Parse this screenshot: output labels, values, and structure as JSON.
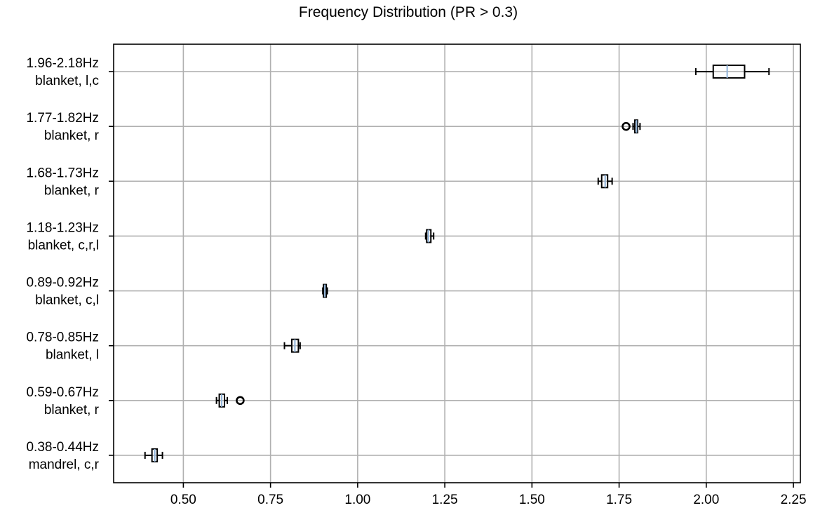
{
  "chart_data": {
    "type": "boxplot",
    "orientation": "horizontal",
    "title": "Frequency Distribution (PR > 0.3)",
    "xlim": [
      0.3,
      2.27
    ],
    "xticks": [
      0.5,
      0.75,
      1.0,
      1.25,
      1.5,
      1.75,
      2.0,
      2.25
    ],
    "xtick_labels": [
      "0.50",
      "0.75",
      "1.00",
      "1.25",
      "1.50",
      "1.75",
      "2.00",
      "2.25"
    ],
    "grid": true,
    "categories": [
      {
        "line1": "1.96-2.18Hz",
        "line2": "blanket, l,c",
        "whisker_low": 1.97,
        "q1": 2.02,
        "median": 2.06,
        "q3": 2.11,
        "whisker_high": 2.18,
        "fliers": []
      },
      {
        "line1": "1.77-1.82Hz",
        "line2": "blanket, r",
        "whisker_low": 1.79,
        "q1": 1.795,
        "median": 1.8,
        "q3": 1.803,
        "whisker_high": 1.81,
        "fliers": [
          1.77
        ]
      },
      {
        "line1": "1.68-1.73Hz",
        "line2": "blanket, r",
        "whisker_low": 1.69,
        "q1": 1.7,
        "median": 1.71,
        "q3": 1.717,
        "whisker_high": 1.73,
        "fliers": []
      },
      {
        "line1": "1.18-1.23Hz",
        "line2": "blanket, c,r,l",
        "whisker_low": 1.195,
        "q1": 1.198,
        "median": 1.203,
        "q3": 1.21,
        "whisker_high": 1.218,
        "fliers": []
      },
      {
        "line1": "0.89-0.92Hz",
        "line2": "blanket, c,l",
        "whisker_low": 0.9,
        "q1": 0.902,
        "median": 0.906,
        "q3": 0.91,
        "whisker_high": 0.913,
        "fliers": []
      },
      {
        "line1": "0.78-0.85Hz",
        "line2": "blanket, l",
        "whisker_low": 0.79,
        "q1": 0.811,
        "median": 0.82,
        "q3": 0.83,
        "whisker_high": 0.835,
        "fliers": []
      },
      {
        "line1": "0.59-0.67Hz",
        "line2": "blanket, r",
        "whisker_low": 0.595,
        "q1": 0.603,
        "median": 0.61,
        "q3": 0.618,
        "whisker_high": 0.626,
        "fliers": [
          0.663
        ]
      },
      {
        "line1": "0.38-0.44Hz",
        "line2": "mandrel, c,r",
        "whisker_low": 0.39,
        "q1": 0.41,
        "median": 0.418,
        "q3": 0.425,
        "whisker_high": 0.44,
        "fliers": []
      }
    ]
  }
}
